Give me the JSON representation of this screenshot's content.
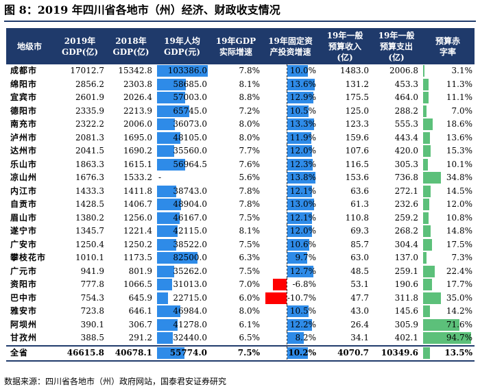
{
  "title": "图 8：2019 年四川省各地市（州）经济、财政收支情况",
  "source": "数据来源：四川省各地市（州）政府网站，国泰君安证券研究",
  "headers": [
    "地级市",
    "2019年\nGDP(亿)",
    "2018年\nGDP(亿)",
    "19年人均\nGDP(元)",
    "19年GDP\n实际增速",
    "19年固定资\n产投资增速",
    "19年一般\n预算收入\n(亿)",
    "19年一般\n预算支出\n(亿)",
    "预算赤\n字率"
  ],
  "colors": {
    "header_bg": "#1f3a6b",
    "bar_blue": "#2e8be8",
    "bar_green": "#5cc07a",
    "bar_red": "#ff0000"
  },
  "rows": [
    {
      "city": "成都市",
      "gdp2019": "17012.7",
      "gdp2018": "15342.8",
      "gdp_per": "103386.0",
      "gdp_per_v": 103386.0,
      "growth": "7.8%",
      "inv": "10.0%",
      "inv_v": 10.0,
      "rev": "1483.0",
      "exp": "2006.8",
      "deficit": "3.1%",
      "deficit_v": 3.1
    },
    {
      "city": "绵阳市",
      "gdp2019": "2856.2",
      "gdp2018": "2303.8",
      "gdp_per": "58685.0",
      "gdp_per_v": 58685.0,
      "growth": "8.1%",
      "inv": "13.6%",
      "inv_v": 13.6,
      "rev": "131.2",
      "exp": "453.3",
      "deficit": "11.3%",
      "deficit_v": 11.3
    },
    {
      "city": "宜宾市",
      "gdp2019": "2601.9",
      "gdp2018": "2026.4",
      "gdp_per": "57003.0",
      "gdp_per_v": 57003.0,
      "growth": "8.8%",
      "inv": "12.9%",
      "inv_v": 12.9,
      "rev": "175.5",
      "exp": "464.0",
      "deficit": "11.1%",
      "deficit_v": 11.1
    },
    {
      "city": "德阳市",
      "gdp2019": "2335.9",
      "gdp2018": "2213.9",
      "gdp_per": "65745.0",
      "gdp_per_v": 65745.0,
      "growth": "7.2%",
      "inv": "10.5%",
      "inv_v": 10.5,
      "rev": "125.0",
      "exp": "288.2",
      "deficit": "7.0%",
      "deficit_v": 7.0
    },
    {
      "city": "南充市",
      "gdp2019": "2322.2",
      "gdp2018": "2006.0",
      "gdp_per": "36073.0",
      "gdp_per_v": 36073.0,
      "growth": "8.0%",
      "inv": "13.3%",
      "inv_v": 13.3,
      "rev": "123.3",
      "exp": "555.3",
      "deficit": "18.6%",
      "deficit_v": 18.6
    },
    {
      "city": "泸州市",
      "gdp2019": "2081.3",
      "gdp2018": "1695.0",
      "gdp_per": "48105.0",
      "gdp_per_v": 48105.0,
      "growth": "8.0%",
      "inv": "11.9%",
      "inv_v": 11.9,
      "rev": "159.6",
      "exp": "443.4",
      "deficit": "13.6%",
      "deficit_v": 13.6
    },
    {
      "city": "达州市",
      "gdp2019": "2041.5",
      "gdp2018": "1690.2",
      "gdp_per": "35560.0",
      "gdp_per_v": 35560.0,
      "growth": "7.7%",
      "inv": "12.0%",
      "inv_v": 12.0,
      "rev": "107.6",
      "exp": "420.0",
      "deficit": "15.3%",
      "deficit_v": 15.3
    },
    {
      "city": "乐山市",
      "gdp2019": "1863.3",
      "gdp2018": "1615.1",
      "gdp_per": "56964.5",
      "gdp_per_v": 56964.5,
      "growth": "7.6%",
      "inv": "12.3%",
      "inv_v": 12.3,
      "rev": "116.5",
      "exp": "305.3",
      "deficit": "10.1%",
      "deficit_v": 10.1
    },
    {
      "city": "凉山州",
      "gdp2019": "1676.3",
      "gdp2018": "1533.2",
      "gdp_per": "-",
      "gdp_per_v": 0,
      "growth": "5.6%",
      "inv": "13.8%",
      "inv_v": 13.8,
      "rev": "153.6",
      "exp": "736.8",
      "deficit": "34.8%",
      "deficit_v": 34.8
    },
    {
      "city": "内江市",
      "gdp2019": "1433.3",
      "gdp2018": "1411.8",
      "gdp_per": "38743.0",
      "gdp_per_v": 38743.0,
      "growth": "7.8%",
      "inv": "12.1%",
      "inv_v": 12.1,
      "rev": "63.6",
      "exp": "272.1",
      "deficit": "14.5%",
      "deficit_v": 14.5
    },
    {
      "city": "自贡市",
      "gdp2019": "1428.5",
      "gdp2018": "1406.7",
      "gdp_per": "48904.0",
      "gdp_per_v": 48904.0,
      "growth": "7.8%",
      "inv": "13.0%",
      "inv_v": 13.0,
      "rev": "61.3",
      "exp": "232.6",
      "deficit": "12.0%",
      "deficit_v": 12.0
    },
    {
      "city": "眉山市",
      "gdp2019": "1380.2",
      "gdp2018": "1256.0",
      "gdp_per": "46167.0",
      "gdp_per_v": 46167.0,
      "growth": "7.5%",
      "inv": "12.1%",
      "inv_v": 12.1,
      "rev": "110.8",
      "exp": "259.2",
      "deficit": "10.8%",
      "deficit_v": 10.8
    },
    {
      "city": "遂宁市",
      "gdp2019": "1345.7",
      "gdp2018": "1221.4",
      "gdp_per": "42115.0",
      "gdp_per_v": 42115.0,
      "growth": "8.1%",
      "inv": "12.0%",
      "inv_v": 12.0,
      "rev": "69.3",
      "exp": "268.2",
      "deficit": "14.8%",
      "deficit_v": 14.8
    },
    {
      "city": "广安市",
      "gdp2019": "1250.4",
      "gdp2018": "1250.2",
      "gdp_per": "38522.0",
      "gdp_per_v": 38522.0,
      "growth": "7.5%",
      "inv": "10.6%",
      "inv_v": 10.6,
      "rev": "85.7",
      "exp": "304.4",
      "deficit": "17.5%",
      "deficit_v": 17.5
    },
    {
      "city": "攀枝花市",
      "gdp2019": "1010.1",
      "gdp2018": "1173.5",
      "gdp_per": "82500.0",
      "gdp_per_v": 82500.0,
      "growth": "6.3%",
      "inv": "9.7%",
      "inv_v": 9.7,
      "rev": "63.0",
      "exp": "137.0",
      "deficit": "7.3%",
      "deficit_v": 7.3
    },
    {
      "city": "广元市",
      "gdp2019": "941.9",
      "gdp2018": "801.9",
      "gdp_per": "35262.0",
      "gdp_per_v": 35262.0,
      "growth": "7.5%",
      "inv": "12.7%",
      "inv_v": 12.7,
      "rev": "48.5",
      "exp": "259.1",
      "deficit": "22.4%",
      "deficit_v": 22.4
    },
    {
      "city": "资阳市",
      "gdp2019": "777.8",
      "gdp2018": "1066.5",
      "gdp_per": "31013.0",
      "gdp_per_v": 31013.0,
      "growth": "7.0%",
      "inv": "-6.8%",
      "inv_v": -6.8,
      "rev": "53.1",
      "exp": "190.6",
      "deficit": "17.7%",
      "deficit_v": 17.7
    },
    {
      "city": "巴中市",
      "gdp2019": "754.3",
      "gdp2018": "645.9",
      "gdp_per": "22715.0",
      "gdp_per_v": 22715.0,
      "growth": "6.0%",
      "inv": "-10.7%",
      "inv_v": -10.7,
      "rev": "47.7",
      "exp": "311.8",
      "deficit": "35.0%",
      "deficit_v": 35.0
    },
    {
      "city": "雅安市",
      "gdp2019": "723.8",
      "gdp2018": "646.1",
      "gdp_per": "46984.0",
      "gdp_per_v": 46984.0,
      "growth": "8.0%",
      "inv": "10.5%",
      "inv_v": 10.5,
      "rev": "43.0",
      "exp": "145.6",
      "deficit": "14.2%",
      "deficit_v": 14.2
    },
    {
      "city": "阿坝州",
      "gdp2019": "390.1",
      "gdp2018": "306.7",
      "gdp_per": "41278.0",
      "gdp_per_v": 41278.0,
      "growth": "6.1%",
      "inv": "12.2%",
      "inv_v": 12.2,
      "rev": "26.4",
      "exp": "305.9",
      "deficit": "71.6%",
      "deficit_v": 71.6
    },
    {
      "city": "甘孜州",
      "gdp2019": "388.5",
      "gdp2018": "291.2",
      "gdp_per": "32440.0",
      "gdp_per_v": 32440.0,
      "growth": "6.5%",
      "inv": "8.2%",
      "inv_v": 8.2,
      "rev": "34.1",
      "exp": "402.1",
      "deficit": "94.7%",
      "deficit_v": 94.7
    }
  ],
  "total": {
    "city": "全省",
    "gdp2019": "46615.8",
    "gdp2018": "40678.1",
    "gdp_per": "55774.0",
    "gdp_per_v": 55774.0,
    "growth": "7.5%",
    "inv": "10.2%",
    "inv_v": 10.2,
    "rev": "4070.7",
    "exp": "10349.6",
    "deficit": "13.5%",
    "deficit_v": 13.5
  },
  "scales": {
    "gdp_per_max": 103386.0,
    "inv_min": -11.0,
    "inv_max": 14.5,
    "deficit_max": 94.7
  }
}
